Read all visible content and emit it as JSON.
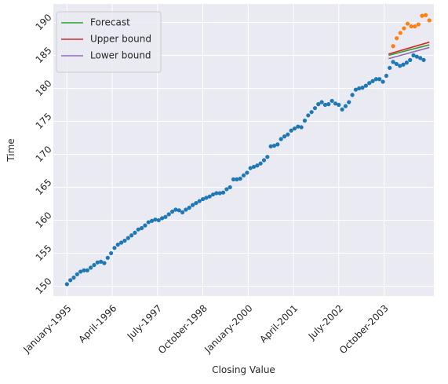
{
  "chart_data": {
    "type": "scatter",
    "xlabel": "Closing Value",
    "ylabel": "Time",
    "xlim": [
      -3,
      81
    ],
    "ylim": [
      148.5,
      192.8
    ],
    "x_ticks": [
      {
        "x": 0,
        "label": "January-1995"
      },
      {
        "x": 10,
        "label": "April-1996"
      },
      {
        "x": 20,
        "label": "July-1997"
      },
      {
        "x": 30,
        "label": "October-1998"
      },
      {
        "x": 40,
        "label": "January-2000"
      },
      {
        "x": 50,
        "label": "April-2001"
      },
      {
        "x": 60,
        "label": "July-2002"
      },
      {
        "x": 70,
        "label": "October-2003"
      }
    ],
    "y_ticks": [
      150,
      155,
      160,
      165,
      170,
      175,
      180,
      185,
      190
    ],
    "grid": true,
    "legend_position": "top-left",
    "historical": {
      "color": "#1f77b4",
      "x_start": 0,
      "values": [
        150.3,
        150.9,
        151.3,
        151.8,
        152.2,
        152.4,
        152.4,
        152.8,
        153.2,
        153.6,
        153.7,
        153.5,
        154.3,
        155.0,
        155.8,
        156.3,
        156.6,
        156.9,
        157.3,
        157.7,
        158.1,
        158.6,
        158.8,
        159.2,
        159.7,
        159.9,
        160.1,
        160.0,
        160.3,
        160.5,
        160.9,
        161.3,
        161.6,
        161.5,
        161.2,
        161.6,
        161.9,
        162.3,
        162.6,
        162.9,
        163.2,
        163.4,
        163.6,
        163.9,
        164.1,
        164.1,
        164.2,
        164.7,
        165.0,
        166.2,
        166.2,
        166.3,
        166.8,
        167.2,
        167.9,
        168.1,
        168.3,
        168.6,
        169.1,
        169.6,
        171.2,
        171.3,
        171.5,
        172.3,
        172.7,
        173.0,
        173.6,
        173.9,
        174.2,
        174.1,
        175.1,
        175.9,
        176.4,
        177.0,
        177.6,
        177.9,
        177.5,
        177.6,
        178.1,
        177.7,
        177.5,
        176.8,
        177.3,
        177.9,
        179.0,
        179.8,
        180.0,
        180.1,
        180.4,
        180.8,
        181.1,
        181.4,
        181.4,
        181.0,
        181.9,
        183.1,
        184.0,
        183.7,
        183.4,
        183.6,
        183.9,
        184.3,
        185.0,
        184.8,
        184.6,
        184.3
      ]
    },
    "forecast_points": {
      "color": "#ff7f0e",
      "x": [
        72,
        72.8,
        73.6,
        74.4,
        75.2,
        76,
        76.8,
        77.6,
        78.4,
        79.2,
        80
      ],
      "values": [
        186.4,
        187.6,
        188.4,
        189.1,
        189.8,
        189.4,
        189.4,
        189.7,
        191.0,
        191.1,
        190.3
      ]
    },
    "series": [
      {
        "name": "Forecast",
        "color": "#2ca02c",
        "x": [
          71,
          80
        ],
        "values": [
          185.0,
          186.6
        ]
      },
      {
        "name": "Upper bound",
        "color": "#d62728",
        "x": [
          71,
          80
        ],
        "values": [
          185.2,
          187.0
        ]
      },
      {
        "name": "Lower bound",
        "color": "#9467bd",
        "x": [
          71,
          80
        ],
        "values": [
          184.5,
          186.2
        ]
      }
    ]
  }
}
